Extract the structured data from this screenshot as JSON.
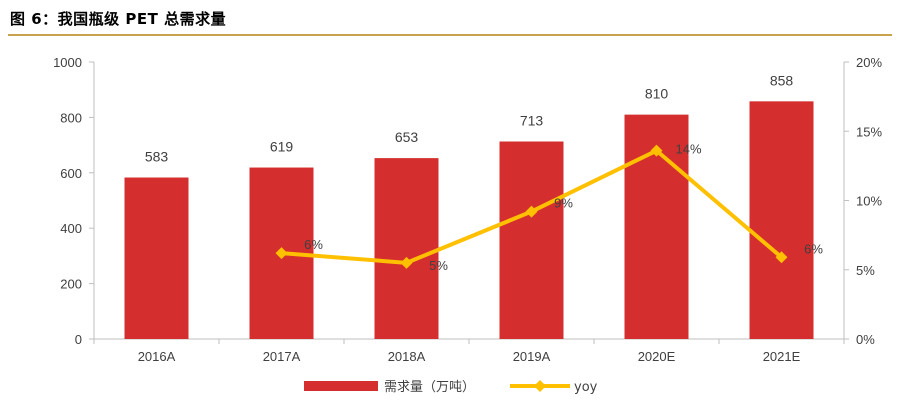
{
  "title": "图 6：我国瓶级 PET 总需求量",
  "chart_data": {
    "type": "bar",
    "categories": [
      "2016A",
      "2017A",
      "2018A",
      "2019A",
      "2020E",
      "2021E"
    ],
    "series": [
      {
        "name": "需求量（万吨）",
        "type": "bar",
        "axis": "left",
        "color": "#d42e2e",
        "values": [
          583,
          619,
          653,
          713,
          810,
          858
        ],
        "labels": [
          "583",
          "619",
          "653",
          "713",
          "810",
          "858"
        ]
      },
      {
        "name": "yoy",
        "type": "line",
        "axis": "right",
        "color": "#ffc000",
        "values": [
          null,
          6.2,
          5.5,
          9.2,
          13.6,
          5.9
        ],
        "labels": [
          "",
          "6%",
          "5%",
          "9%",
          "14%",
          "6%"
        ]
      }
    ],
    "y_left": {
      "min": 0,
      "max": 1000,
      "ticks": [
        "0",
        "200",
        "400",
        "600",
        "800",
        "1000"
      ]
    },
    "y_right": {
      "min": 0,
      "max": 20,
      "ticks": [
        "0%",
        "5%",
        "10%",
        "15%",
        "20%"
      ]
    },
    "grid": false,
    "legend_position": "bottom"
  }
}
